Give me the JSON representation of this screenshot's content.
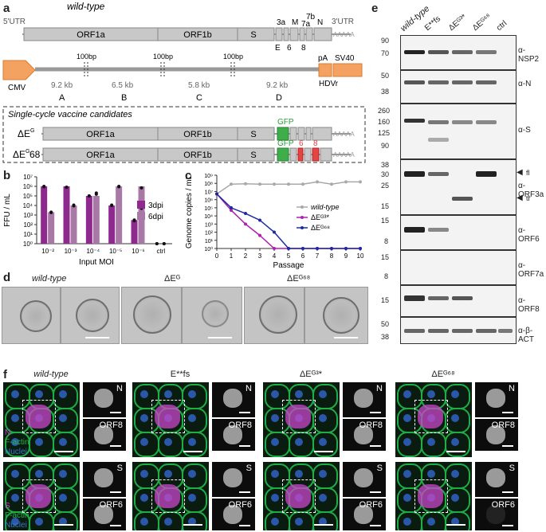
{
  "panels": {
    "a": "a",
    "b": "b",
    "c": "c",
    "d": "d",
    "e": "e",
    "f": "f"
  },
  "genome": {
    "title": "wild-type",
    "utr5": "5'UTR",
    "utr3": "3'UTR",
    "genes_top": [
      "ORF1a",
      "ORF1b",
      "S"
    ],
    "small_top": [
      "3a",
      "M",
      "7b"
    ],
    "small_7a": "7a",
    "small_N": "N",
    "small_bottom": [
      "E",
      "6",
      "8"
    ],
    "polyA": "AAAAA",
    "cmv": "CMV",
    "pA": "pA",
    "sv40": "SV40",
    "hdvr": "HDVr",
    "bp": [
      "100bp",
      "100bp",
      "100bp"
    ],
    "fragments": [
      "9.2 kb",
      "6.5 kb",
      "5.8 kb",
      "9.2 kb"
    ],
    "frag_letters": [
      "A",
      "B",
      "C",
      "D"
    ],
    "box_title": "Single-cycle vaccine candidates",
    "cand1": "ΔE",
    "cand1_sup": "G",
    "cand2": "ΔE",
    "cand2_sup": "G",
    "cand2_suffix": "68",
    "gfp": "GFP",
    "red6": "6",
    "red8": "8"
  },
  "chart_b": {
    "ylabel": "FFU / mL",
    "xlabel": "Input MOI",
    "legend": [
      "3dpi",
      "6dpi"
    ],
    "colors": [
      "#8e2a8e",
      "#a879a6"
    ]
  },
  "chart_c": {
    "ylabel": "Genome copies / mL",
    "xlabel": "Passage",
    "legend": [
      "wild-type",
      "ΔEᴳ³*",
      "ΔEᴳ⁶⁸"
    ],
    "colors": [
      "#a9a9a9",
      "#b01fb0",
      "#1c2aa3"
    ]
  },
  "chart_data": [
    {
      "type": "bar",
      "categories": [
        "10⁻²",
        "10⁻³",
        "10⁻⁴",
        "10⁻⁵",
        "10⁻⁶",
        "ctrl"
      ],
      "yscale": "log",
      "ylim": [
        1,
        10000000
      ],
      "ytick_labels": [
        "10⁰",
        "10¹",
        "10²",
        "10³",
        "10⁴",
        "10⁵",
        "10⁶",
        "10⁷"
      ],
      "series": [
        {
          "name": "3dpi",
          "values": [
            1000000,
            1000000,
            100000,
            10000,
            300,
            1
          ],
          "points": [
            [
              1000000,
              900000
            ],
            [
              800000,
              800000
            ],
            [
              100000,
              100000
            ],
            [
              10000,
              11000
            ],
            [
              300,
              250
            ],
            [
              1,
              1
            ]
          ]
        },
        {
          "name": "6dpi",
          "values": [
            2000,
            10000,
            100000,
            1000000,
            1000000,
            1
          ],
          "points": [
            [
              2000,
              1800
            ],
            [
              11000,
              9000
            ],
            [
              200000,
              150000
            ],
            [
              1000000,
              900000
            ],
            [
              700000,
              5000
            ],
            [
              1,
              1
            ]
          ]
        }
      ],
      "xlabel": "Input MOI",
      "ylabel": "FFU / mL"
    },
    {
      "type": "line",
      "x": [
        0,
        1,
        2,
        3,
        4,
        5,
        6,
        7,
        8,
        9,
        10
      ],
      "xlabel": "Passage",
      "ylabel": "Genome copies / mL",
      "yscale": "log",
      "ylim": [
        1,
        1000000000
      ],
      "ytick_labels": [
        "10⁰",
        "10¹",
        "10²",
        "10³",
        "10⁴",
        "10⁵",
        "10⁶",
        "10⁷",
        "10⁸",
        "10⁹"
      ],
      "series": [
        {
          "name": "wild-type",
          "values": [
            5000000,
            80000000,
            90000000,
            80000000,
            80000000,
            80000000,
            80000000,
            150000000,
            80000000,
            150000000,
            150000000
          ]
        },
        {
          "name": "ΔEᴳ³*",
          "values": [
            5000000,
            50000,
            1000,
            40,
            1,
            1,
            1,
            1,
            1,
            1,
            1
          ]
        },
        {
          "name": "ΔEᴳ⁶⁸",
          "values": [
            5000000,
            100000,
            20000,
            3000,
            100,
            1,
            1,
            1,
            1,
            1,
            1
          ]
        }
      ]
    }
  ],
  "em": {
    "titles": [
      "wild-type",
      "ΔEᴳ",
      "ΔEᴳ⁶⁸"
    ]
  },
  "wb": {
    "columns": [
      "wild-type",
      "E**fs",
      "ΔEᴳ³*",
      "ΔEᴳ⁶⁸",
      "ctrl"
    ],
    "rows": [
      {
        "label": "α-NSP2",
        "mw": [
          "90",
          "70"
        ]
      },
      {
        "label": "α-N",
        "mw": [
          "50",
          "38"
        ]
      },
      {
        "label": "α-S",
        "mw": [
          "260",
          "160",
          "125",
          "90"
        ]
      },
      {
        "label": "α-ORF3a",
        "mw": [
          "38",
          "30",
          "25",
          "15"
        ],
        "arrows": [
          "fl",
          "tr"
        ]
      },
      {
        "label": "α-ORF6",
        "mw": [
          "15",
          "8"
        ]
      },
      {
        "label": "α-ORF7a",
        "mw": [
          "15",
          "8"
        ]
      },
      {
        "label": "α-ORF8",
        "mw": [
          "15"
        ]
      },
      {
        "label": "α-β-ACT",
        "mw": [
          "50",
          "38"
        ]
      }
    ]
  },
  "iff": {
    "titles": [
      "wild-type",
      "E**fs",
      "ΔEᴳ³*",
      "ΔEᴳ⁶⁸"
    ],
    "legend_top": [
      "N",
      "F-actin",
      "Nuclei"
    ],
    "legend_bottom": [
      "S",
      "F-actin",
      "Nuclei"
    ],
    "thumb_top": [
      "N",
      "ORF8"
    ],
    "thumb_bottom": [
      "S",
      "ORF6"
    ],
    "legend_colors": [
      "#c848c8",
      "#27b24a",
      "#3a76c8"
    ]
  }
}
